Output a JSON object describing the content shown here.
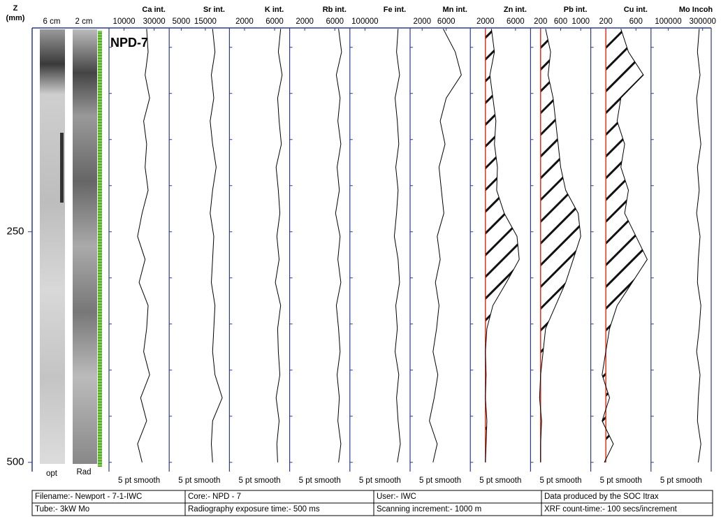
{
  "depth_axis": {
    "label": [
      "Z",
      "(mm)"
    ],
    "ylim": [
      29,
      507
    ],
    "yticks": [
      250,
      500
    ],
    "minor_ticks": [
      50,
      100,
      150,
      200,
      250,
      300,
      350,
      400,
      450,
      500
    ],
    "depths": [
      30,
      55,
      80,
      105,
      130,
      155,
      180,
      205,
      230,
      255,
      280,
      305,
      330,
      355,
      380,
      405,
      430,
      455,
      480,
      500
    ]
  },
  "core_images": {
    "opt": {
      "top": "6 cm",
      "bottom": "opt"
    },
    "rad": {
      "top": "2 cm",
      "bottom": "Rad"
    }
  },
  "annotation": "NPD-7",
  "chart_data": [
    {
      "type": "line",
      "title": "Ca int.",
      "xlim": [
        0,
        40000
      ],
      "xticks": [
        10000,
        30000
      ],
      "note": "5 pt smooth",
      "color": "#000000",
      "values": [
        25000,
        26000,
        24000,
        27000,
        23000,
        25000,
        24000,
        26000,
        22000,
        19000,
        24000,
        20000,
        26000,
        25000,
        23000,
        27000,
        21000,
        25000,
        19000,
        22000
      ]
    },
    {
      "type": "line",
      "title": "Sr int.",
      "xlim": [
        0,
        25000
      ],
      "xticks": [
        5000,
        15000
      ],
      "note": "5 pt smooth",
      "color": "#000000",
      "values": [
        18000,
        19000,
        17500,
        18500,
        17000,
        18000,
        19500,
        18000,
        17000,
        18500,
        18000,
        17500,
        19000,
        18500,
        18000,
        19000,
        22000,
        18000,
        17500,
        18000
      ]
    },
    {
      "type": "line",
      "title": "K int.",
      "xlim": [
        0,
        8000
      ],
      "xticks": [
        2000,
        6000
      ],
      "note": "5 pt smooth",
      "color": "#000000",
      "values": [
        6800,
        6500,
        7000,
        6400,
        6600,
        6900,
        6200,
        6500,
        6700,
        6300,
        6600,
        6100,
        6800,
        6400,
        6500,
        6700,
        6200,
        6600,
        6300,
        6400
      ]
    },
    {
      "type": "line",
      "title": "Rb int.",
      "xlim": [
        0,
        8000
      ],
      "xticks": [
        2000,
        6000
      ],
      "note": "5 pt smooth",
      "color": "#000000",
      "values": [
        6500,
        6900,
        6200,
        6700,
        6400,
        6800,
        6300,
        6600,
        6100,
        6700,
        6400,
        6800,
        6200,
        6500,
        6700,
        6300,
        6600,
        6400,
        6800,
        6500
      ]
    },
    {
      "type": "line",
      "title": "Fe int.",
      "xlim": [
        0,
        400000
      ],
      "xticks": [
        100000
      ],
      "note": "5 pt smooth",
      "color": "#000000",
      "values": [
        320000,
        310000,
        330000,
        300000,
        315000,
        325000,
        305000,
        320000,
        310000,
        295000,
        320000,
        330000,
        305000,
        315000,
        300000,
        325000,
        310000,
        320000,
        335000,
        315000
      ]
    },
    {
      "type": "line",
      "title": "Mn int.",
      "xlim": [
        0,
        10000
      ],
      "xticks": [
        2000,
        6000
      ],
      "note": "5 pt smooth",
      "color": "#000000",
      "values": [
        5500,
        7500,
        8500,
        6000,
        5000,
        5800,
        4800,
        5200,
        5600,
        4500,
        5000,
        4200,
        4800,
        4400,
        3800,
        4600,
        4000,
        3200,
        4500,
        3800
      ]
    },
    {
      "type": "line",
      "title": "Zn int.",
      "xlim": [
        0,
        8000
      ],
      "xticks": [
        2000,
        6000
      ],
      "note": "5 pt smooth",
      "color": "#000000",
      "baseline": 2000,
      "baseline_color": "#e8321e",
      "hatch": true,
      "values": [
        2800,
        3200,
        2600,
        3000,
        3400,
        3200,
        3600,
        3500,
        4500,
        6200,
        6500,
        4800,
        3000,
        2200,
        2000,
        2100,
        2000,
        2200,
        2100,
        2000
      ]
    },
    {
      "type": "line",
      "title": "Pb int.",
      "xlim": [
        0,
        1200
      ],
      "xticks": [
        200,
        600,
        1000
      ],
      "note": "5 pt smooth",
      "color": "#000000",
      "baseline": 200,
      "baseline_color": "#e8321e",
      "hatch": true,
      "values": [
        300,
        400,
        350,
        450,
        500,
        550,
        600,
        700,
        950,
        1000,
        850,
        700,
        500,
        300,
        250,
        200,
        180,
        220,
        200,
        200
      ]
    },
    {
      "type": "line",
      "title": "Cu int.",
      "xlim": [
        0,
        800
      ],
      "xticks": [
        200,
        600
      ],
      "note": "5 pt smooth",
      "color": "#000000",
      "baseline": 200,
      "baseline_color": "#e8321e",
      "hatch": true,
      "values": [
        400,
        500,
        700,
        400,
        350,
        450,
        400,
        500,
        450,
        600,
        750,
        550,
        350,
        250,
        200,
        150,
        250,
        150,
        300,
        180
      ]
    },
    {
      "type": "line",
      "title": "Mo Incoh",
      "xlim": [
        0,
        350000
      ],
      "xticks": [
        100000,
        300000
      ],
      "note": "5 pt smooth",
      "color": "#000000",
      "values": [
        280000,
        270000,
        285000,
        265000,
        275000,
        290000,
        270000,
        280000,
        265000,
        285000,
        275000,
        270000,
        290000,
        280000,
        265000,
        285000,
        275000,
        270000,
        290000,
        275000
      ]
    }
  ],
  "info_table": {
    "rows": [
      [
        "Filename:- Newport - 7-1-IWC",
        "Core:- NPD - 7",
        "User:- IWC",
        "Data produced by the SOC Itrax"
      ],
      [
        "Tube:- 3kW Mo",
        "Radiography exposure time:- 500 ms",
        "Scanning increment:- 1000  m",
        "XRF count-time:- 100 secs/increment"
      ]
    ]
  }
}
